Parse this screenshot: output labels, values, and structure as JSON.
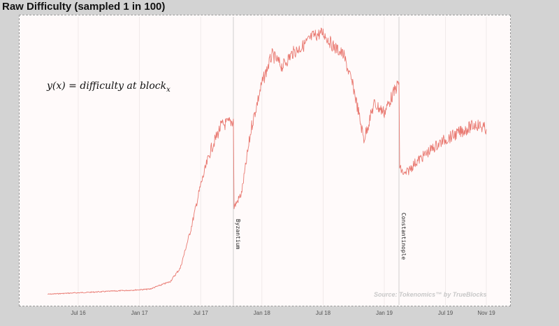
{
  "chart_data": {
    "type": "line",
    "title": "Raw Difficulty (sampled 1 in 100)",
    "formula": {
      "lhs": "y(x) = difficulty at block",
      "subscript": "x"
    },
    "source": "Source: Tokenomics™ by TrueBlocks",
    "x_ticks": [
      "Jul 16",
      "Jan 17",
      "Jul 17",
      "Jan 18",
      "Jul 18",
      "Jan 19",
      "Jul 19",
      "Nov 19"
    ],
    "events": [
      {
        "label": "Byzantium",
        "date": "Oct 17"
      },
      {
        "label": "Constantinople",
        "date": "Feb 19"
      }
    ],
    "series": [
      {
        "color": "#e8736a",
        "x": [
          "Apr 16",
          "Jun 16",
          "Aug 16",
          "Oct 16",
          "Dec 16",
          "Feb 17",
          "Apr 17",
          "May 17",
          "Jun 17",
          "Jul 17",
          "Aug 17",
          "Sep 17",
          "Oct 17",
          "Oct 17",
          "Nov 17",
          "Dec 17",
          "Jan 18",
          "Feb 18",
          "Mar 18",
          "Apr 18",
          "May 18",
          "Jun 18",
          "Jul 18",
          "Aug 18",
          "Sep 18",
          "Oct 18",
          "Nov 18",
          "Dec 18",
          "Jan 19",
          "Feb 19",
          "Feb 19",
          "Mar 19",
          "Apr 19",
          "May 19",
          "Jun 19",
          "Jul 19",
          "Aug 19",
          "Sep 19",
          "Oct 19",
          "Nov 19"
        ],
        "y": [
          0.6,
          1.2,
          1.7,
          2.3,
          2.9,
          3.6,
          8,
          16,
          38,
          65,
          86,
          100,
          103,
          52,
          60,
          100,
          125,
          142,
          135,
          143,
          147,
          153,
          155,
          147,
          142,
          122,
          92,
          113,
          108,
          126,
          75,
          71,
          78,
          83,
          88,
          92,
          95,
          98,
          101,
          98
        ]
      }
    ],
    "y_ticks_shown": false,
    "grid": "vertical"
  }
}
